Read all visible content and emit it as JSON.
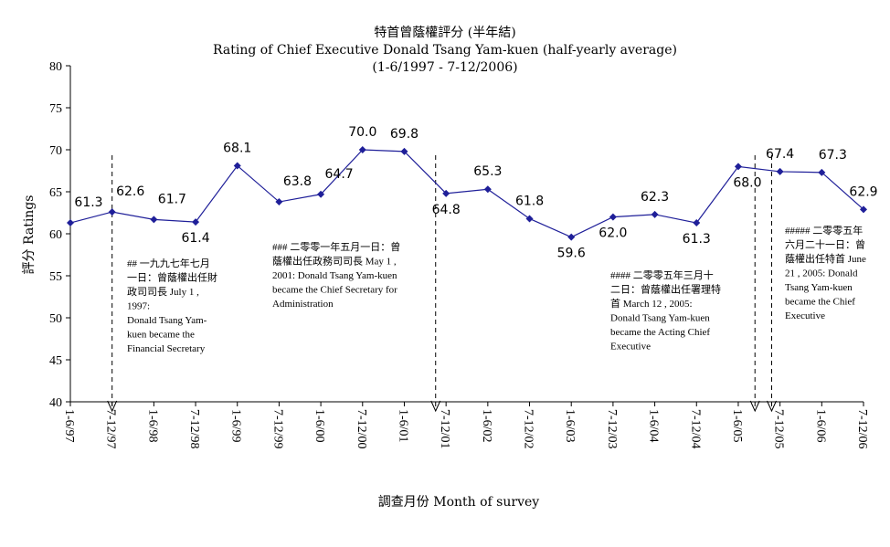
{
  "chart_data": {
    "type": "line",
    "title": "特首曾蔭權評分 (半年結)",
    "subtitle": "Rating of Chief Executive Donald Tsang Yam-kuen  (half-yearly average)",
    "subtitle2": "(1-6/1997 - 7-12/2006)",
    "xlabel": "調查月份 Month of survey",
    "ylabel": "評分 Ratings",
    "ylim": [
      40,
      80
    ],
    "yticks": [
      40,
      45,
      50,
      55,
      60,
      65,
      70,
      75,
      80
    ],
    "categories": [
      "1-6/97",
      "7-12/97",
      "1-6/98",
      "7-12/98",
      "1-6/99",
      "7-12/99",
      "1-6/00",
      "7-12/00",
      "1-6/01",
      "7-12/01",
      "1-6/02",
      "7-12/02",
      "1-6/03",
      "7-12/03",
      "1-6/04",
      "7-12/04",
      "1-6/05",
      "7-12/05",
      "1-6/06",
      "7-12/06"
    ],
    "series": [
      {
        "values": [
          61.3,
          62.6,
          61.7,
          61.4,
          68.1,
          63.8,
          64.7,
          70.0,
          69.8,
          64.8,
          65.3,
          61.8,
          59.6,
          62.0,
          62.3,
          61.3,
          68.0,
          67.4,
          67.3,
          62.9
        ],
        "labels": [
          "61.3",
          "62.6",
          "61.7",
          "61.4",
          "68.1",
          "63.8",
          "64.7",
          "70.0",
          "69.8",
          "64.8",
          "65.3",
          "61.8",
          "59.6",
          "62.0",
          "62.3",
          "61.3",
          "68.0",
          "67.4",
          "67.3",
          "62.9"
        ],
        "color": "#1f1f99"
      }
    ],
    "grid": false,
    "legend": "none",
    "annotations": [
      {
        "id": "ann1",
        "text": [
          "## 一九九七年七月",
          "一日：曾蔭權出任財",
          "政司司長 July 1 ,",
          "1997:",
          "Donald Tsang Yam-",
          "kuen became the",
          "Financial Secretary"
        ]
      },
      {
        "id": "ann2",
        "text": [
          "### 二零零一年五月一日：曾",
          "蔭權出任政務司司長 May 1 ,",
          "2001: Donald Tsang Yam-kuen",
          "became the Chief Secretary for",
          "Administration"
        ]
      },
      {
        "id": "ann3",
        "text": [
          "#### 二零零五年三月十",
          "二日：曾蔭權出任署理特",
          "首 March 12 , 2005:",
          "Donald Tsang Yam-kuen",
          "became the Acting Chief",
          "Executive"
        ]
      },
      {
        "id": "ann4",
        "text": [
          "##### 二零零五年",
          "六月二十一日：曾",
          "蔭權出任特首 June",
          "21 , 2005: Donald",
          "Tsang Yam-kuen",
          "became the Chief",
          "Executive"
        ]
      }
    ]
  }
}
